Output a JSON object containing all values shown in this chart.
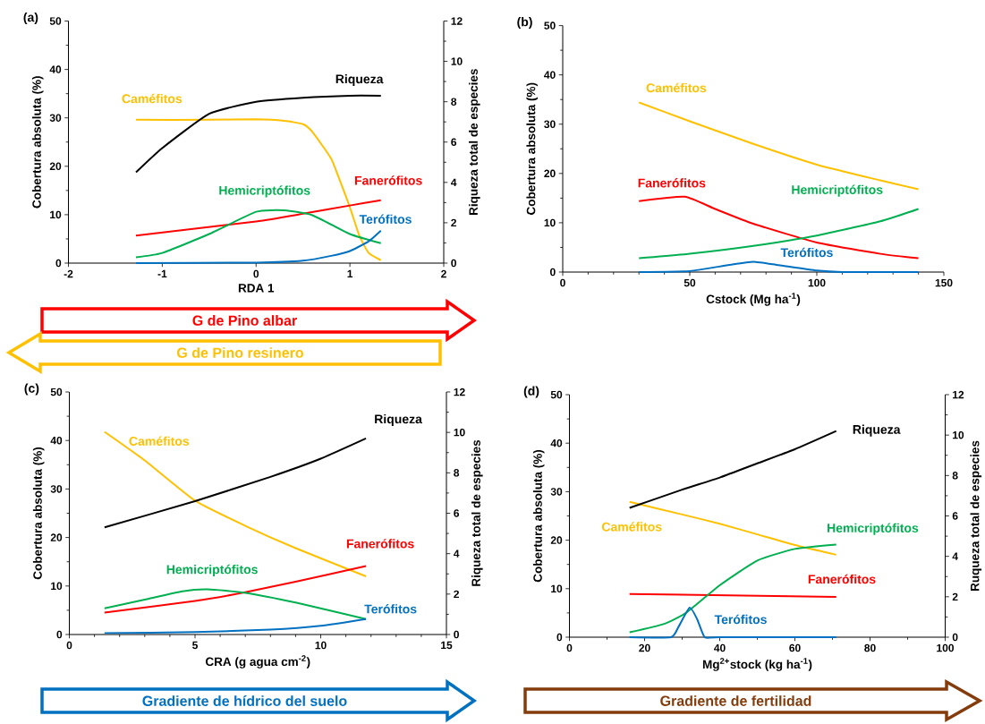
{
  "chart_data": [
    {
      "type": "line",
      "title": "(a)",
      "xlabel": "RDA 1",
      "ylabel": "Cobertura absoluta (%)",
      "y2label": "Riqueza total de especies",
      "xlim": [
        -2,
        2
      ],
      "xticks": [
        -2,
        -1,
        0,
        1,
        2
      ],
      "ylim": [
        0,
        50
      ],
      "yticks": [
        0,
        10,
        20,
        30,
        40,
        50
      ],
      "y2lim": [
        0,
        12
      ],
      "y2ticks": [
        0,
        2,
        4,
        6,
        8,
        10,
        12
      ],
      "annotations": [
        "G de Pino albar",
        "G de Pino resinero"
      ],
      "series": [
        {
          "name": "Caméfitos",
          "color": "#ffc000",
          "x": [
            -1.28,
            -0.5,
            0,
            0.3,
            0.5,
            0.6,
            0.8,
            0.9,
            1.0,
            1.1,
            1.2,
            1.33
          ],
          "values": [
            29.6,
            29.6,
            29.7,
            29.4,
            28.7,
            27.1,
            21.6,
            16.7,
            11.5,
            5.7,
            2.1,
            0.6
          ]
        },
        {
          "name": "Fanerófitos",
          "color": "#ff0000",
          "x": [
            -1.28,
            0,
            0.5,
            1,
            1.33
          ],
          "values": [
            5.7,
            8.6,
            10.2,
            11.9,
            13.0
          ]
        },
        {
          "name": "Hemicriptófitos",
          "color": "#00b050",
          "x": [
            -1.28,
            -1,
            -0.5,
            0,
            0.3,
            0.6,
            1.0,
            1.33
          ],
          "values": [
            1.2,
            2.1,
            6.0,
            10.6,
            10.9,
            9.9,
            6.0,
            4.1
          ]
        },
        {
          "name": "Terófitos",
          "color": "#0070c0",
          "x": [
            -1.28,
            0,
            0.5,
            0.8,
            1.0,
            1.2,
            1.33
          ],
          "values": [
            0,
            0.1,
            0.5,
            1.5,
            2.5,
            4.5,
            6.7
          ]
        },
        {
          "name": "Riqueza",
          "color": "#000000",
          "axis": "y2",
          "x": [
            -1.28,
            -1,
            -0.5,
            0,
            0.5,
            1,
            1.33
          ],
          "values": [
            4.5,
            5.7,
            7.4,
            8.0,
            8.2,
            8.3,
            8.3
          ]
        }
      ]
    },
    {
      "type": "line",
      "title": "(b)",
      "xlabel": "Cstock (Mg ha$^{-1}$)",
      "ylabel": "Cobertura absoluta (%)",
      "xlim": [
        0,
        150
      ],
      "xticks": [
        0,
        50,
        100,
        150
      ],
      "ylim": [
        0,
        50
      ],
      "yticks": [
        0,
        10,
        20,
        30,
        40,
        50
      ],
      "series": [
        {
          "name": "Caméfitos",
          "color": "#ffc000",
          "x": [
            30,
            50,
            75,
            100,
            125,
            140
          ],
          "values": [
            34.4,
            30.6,
            26.0,
            21.8,
            18.6,
            16.8
          ]
        },
        {
          "name": "Fanerófitos",
          "color": "#ff0000",
          "x": [
            30,
            48,
            60,
            75,
            100,
            125,
            140
          ],
          "values": [
            14.4,
            15.3,
            12.8,
            9.8,
            6.0,
            3.7,
            2.8
          ]
        },
        {
          "name": "Hemicriptófitos",
          "color": "#00b050",
          "x": [
            30,
            50,
            75,
            100,
            125,
            140
          ],
          "values": [
            2.8,
            3.7,
            5.3,
            7.4,
            10.3,
            12.8
          ]
        },
        {
          "name": "Terófitos",
          "color": "#0070c0",
          "x": [
            30,
            50,
            65,
            75,
            85,
            100,
            110,
            140
          ],
          "values": [
            0,
            0.2,
            1.4,
            2.1,
            1.4,
            0.3,
            0,
            0
          ]
        }
      ]
    },
    {
      "type": "line",
      "title": "(c)",
      "xlabel": "CRA (g agua cm$^{-2}$)",
      "ylabel": "Cobertura absoluta (%)",
      "y2label": "Riqueza total de especies",
      "xlim": [
        0,
        15
      ],
      "xticks": [
        0,
        5,
        10,
        15
      ],
      "ylim": [
        0,
        50
      ],
      "yticks": [
        0,
        10,
        20,
        30,
        40,
        50
      ],
      "y2lim": [
        0,
        12
      ],
      "y2ticks": [
        0,
        2,
        4,
        6,
        8,
        10,
        12
      ],
      "annotations": [
        "Gradiente de hídrico del suelo"
      ],
      "series": [
        {
          "name": "Caméfitos",
          "color": "#ffc000",
          "x": [
            1.4,
            3,
            5,
            7,
            9,
            11.8
          ],
          "values": [
            41.8,
            35.9,
            27.6,
            22.4,
            17.8,
            12.0
          ]
        },
        {
          "name": "Fanerófitos",
          "color": "#ff0000",
          "x": [
            1.4,
            5,
            7,
            9,
            11.8
          ],
          "values": [
            4.5,
            6.9,
            8.7,
            10.9,
            14.1
          ]
        },
        {
          "name": "Hemicriptófitos",
          "color": "#00b050",
          "x": [
            1.4,
            3,
            4.5,
            5.5,
            7,
            9,
            11.8
          ],
          "values": [
            5.4,
            7.2,
            8.9,
            9.3,
            8.6,
            6.6,
            3.2
          ]
        },
        {
          "name": "Terófitos",
          "color": "#0070c0",
          "x": [
            1.4,
            5,
            8,
            10,
            11.8
          ],
          "values": [
            0.3,
            0.5,
            1.0,
            1.8,
            3.2
          ]
        },
        {
          "name": "Riqueza",
          "color": "#000000",
          "axis": "y2",
          "x": [
            1.4,
            5,
            8,
            10,
            11.8
          ],
          "values": [
            5.3,
            6.6,
            7.8,
            8.7,
            9.7
          ]
        }
      ]
    },
    {
      "type": "line",
      "title": "(d)",
      "xlabel": "Mg$^{2+}$stock (kg ha$^{-1}$)",
      "ylabel": "Cobertura absoluta (%)",
      "y2label": "Ruqueza total de especies",
      "xlim": [
        0,
        100
      ],
      "xticks": [
        0,
        20,
        40,
        60,
        80,
        100
      ],
      "ylim": [
        0,
        50
      ],
      "yticks": [
        0,
        10,
        20,
        30,
        40,
        50
      ],
      "y2lim": [
        0,
        12
      ],
      "y2ticks": [
        0,
        2,
        4,
        6,
        8,
        10,
        12
      ],
      "annotations": [
        "Gradiente de fertilidad"
      ],
      "series": [
        {
          "name": "Caméfitos",
          "color": "#ffc000",
          "x": [
            16,
            30,
            40,
            50,
            60,
            71
          ],
          "values": [
            27.9,
            25.3,
            23.4,
            21.2,
            19.0,
            17.0
          ]
        },
        {
          "name": "Fanerófitos",
          "color": "#ff0000",
          "x": [
            16,
            71
          ],
          "values": [
            8.9,
            8.3
          ]
        },
        {
          "name": "Hemicriptófitos",
          "color": "#00b050",
          "x": [
            16,
            25,
            31,
            40,
            50,
            60,
            71
          ],
          "values": [
            1.0,
            2.7,
            5.0,
            10.7,
            15.8,
            18.2,
            19.1
          ]
        },
        {
          "name": "Terófitos",
          "color": "#0070c0",
          "x": [
            16,
            27,
            29,
            32,
            34,
            36,
            40,
            71
          ],
          "values": [
            0,
            0,
            2.1,
            6.1,
            3.7,
            0,
            0,
            0
          ]
        },
        {
          "name": "Riqueza",
          "color": "#000000",
          "axis": "y2",
          "x": [
            16,
            30,
            40,
            50,
            60,
            71
          ],
          "values": [
            6.4,
            7.3,
            7.9,
            8.6,
            9.3,
            10.2
          ]
        }
      ]
    }
  ]
}
